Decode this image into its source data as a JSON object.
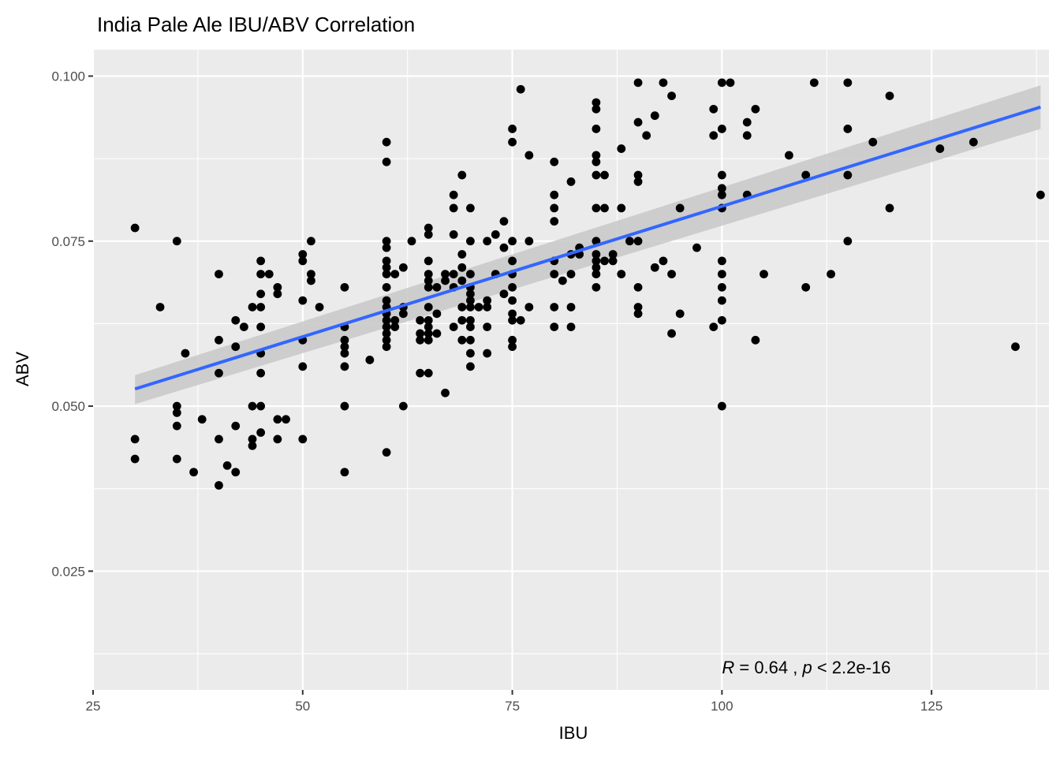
{
  "chart_data": {
    "type": "scatter",
    "title": "India Pale Ale IBU/ABV Correlation",
    "xlabel": "IBU",
    "ylabel": "ABV",
    "xlim": [
      25,
      139
    ],
    "ylim": [
      0.007,
      0.104
    ],
    "x_ticks": [
      25,
      50,
      75,
      100,
      125
    ],
    "x_tick_labels": [
      "25",
      "50",
      "75",
      "100",
      "125"
    ],
    "y_ticks": [
      0.025,
      0.05,
      0.075,
      0.1
    ],
    "y_tick_labels": [
      "0.025",
      "0.050",
      "0.075",
      "0.100"
    ],
    "grid": true,
    "colors": {
      "panel_background": "#ebebeb",
      "grid_major": "#ffffff",
      "points": "#000000",
      "regression_line": "#3366ff",
      "confidence_band": "#c8c8c8"
    },
    "points": [
      [
        30,
        0.077
      ],
      [
        30,
        0.045
      ],
      [
        30,
        0.042
      ],
      [
        33,
        0.065
      ],
      [
        35,
        0.075
      ],
      [
        35,
        0.05
      ],
      [
        35,
        0.049
      ],
      [
        35,
        0.047
      ],
      [
        35,
        0.042
      ],
      [
        36,
        0.058
      ],
      [
        37,
        0.04
      ],
      [
        38,
        0.048
      ],
      [
        40,
        0.07
      ],
      [
        40,
        0.06
      ],
      [
        40,
        0.055
      ],
      [
        40,
        0.045
      ],
      [
        40,
        0.038
      ],
      [
        41,
        0.041
      ],
      [
        42,
        0.063
      ],
      [
        42,
        0.059
      ],
      [
        42,
        0.047
      ],
      [
        42,
        0.04
      ],
      [
        43,
        0.062
      ],
      [
        44,
        0.065
      ],
      [
        44,
        0.05
      ],
      [
        44,
        0.045
      ],
      [
        44,
        0.044
      ],
      [
        45,
        0.072
      ],
      [
        45,
        0.07
      ],
      [
        45,
        0.067
      ],
      [
        45,
        0.065
      ],
      [
        45,
        0.062
      ],
      [
        45,
        0.058
      ],
      [
        45,
        0.055
      ],
      [
        45,
        0.05
      ],
      [
        45,
        0.046
      ],
      [
        46,
        0.07
      ],
      [
        47,
        0.068
      ],
      [
        47,
        0.067
      ],
      [
        47,
        0.048
      ],
      [
        47,
        0.045
      ],
      [
        48,
        0.048
      ],
      [
        50,
        0.073
      ],
      [
        50,
        0.072
      ],
      [
        50,
        0.066
      ],
      [
        50,
        0.06
      ],
      [
        50,
        0.056
      ],
      [
        50,
        0.045
      ],
      [
        51,
        0.075
      ],
      [
        51,
        0.07
      ],
      [
        51,
        0.069
      ],
      [
        52,
        0.065
      ],
      [
        55,
        0.068
      ],
      [
        55,
        0.062
      ],
      [
        55,
        0.06
      ],
      [
        55,
        0.059
      ],
      [
        55,
        0.058
      ],
      [
        55,
        0.056
      ],
      [
        55,
        0.05
      ],
      [
        55,
        0.04
      ],
      [
        58,
        0.057
      ],
      [
        60,
        0.09
      ],
      [
        60,
        0.087
      ],
      [
        60,
        0.075
      ],
      [
        60,
        0.074
      ],
      [
        60,
        0.072
      ],
      [
        60,
        0.071
      ],
      [
        60,
        0.07
      ],
      [
        60,
        0.068
      ],
      [
        60,
        0.066
      ],
      [
        60,
        0.065
      ],
      [
        60,
        0.064
      ],
      [
        60,
        0.063
      ],
      [
        60,
        0.062
      ],
      [
        60,
        0.061
      ],
      [
        60,
        0.06
      ],
      [
        60,
        0.059
      ],
      [
        60,
        0.043
      ],
      [
        61,
        0.07
      ],
      [
        61,
        0.063
      ],
      [
        61,
        0.062
      ],
      [
        62,
        0.071
      ],
      [
        62,
        0.065
      ],
      [
        62,
        0.064
      ],
      [
        62,
        0.05
      ],
      [
        63,
        0.075
      ],
      [
        64,
        0.063
      ],
      [
        64,
        0.061
      ],
      [
        64,
        0.06
      ],
      [
        64,
        0.055
      ],
      [
        65,
        0.077
      ],
      [
        65,
        0.076
      ],
      [
        65,
        0.072
      ],
      [
        65,
        0.07
      ],
      [
        65,
        0.069
      ],
      [
        65,
        0.068
      ],
      [
        65,
        0.065
      ],
      [
        65,
        0.063
      ],
      [
        65,
        0.062
      ],
      [
        65,
        0.061
      ],
      [
        65,
        0.06
      ],
      [
        65,
        0.055
      ],
      [
        66,
        0.068
      ],
      [
        66,
        0.064
      ],
      [
        66,
        0.061
      ],
      [
        67,
        0.07
      ],
      [
        67,
        0.069
      ],
      [
        67,
        0.052
      ],
      [
        68,
        0.082
      ],
      [
        68,
        0.08
      ],
      [
        68,
        0.076
      ],
      [
        68,
        0.07
      ],
      [
        68,
        0.068
      ],
      [
        68,
        0.062
      ],
      [
        69,
        0.085
      ],
      [
        69,
        0.073
      ],
      [
        69,
        0.071
      ],
      [
        69,
        0.069
      ],
      [
        69,
        0.065
      ],
      [
        69,
        0.063
      ],
      [
        69,
        0.06
      ],
      [
        70,
        0.08
      ],
      [
        70,
        0.075
      ],
      [
        70,
        0.07
      ],
      [
        70,
        0.068
      ],
      [
        70,
        0.067
      ],
      [
        70,
        0.066
      ],
      [
        70,
        0.065
      ],
      [
        70,
        0.063
      ],
      [
        70,
        0.062
      ],
      [
        70,
        0.06
      ],
      [
        70,
        0.058
      ],
      [
        70,
        0.056
      ],
      [
        71,
        0.065
      ],
      [
        72,
        0.075
      ],
      [
        72,
        0.066
      ],
      [
        72,
        0.065
      ],
      [
        72,
        0.062
      ],
      [
        72,
        0.058
      ],
      [
        73,
        0.076
      ],
      [
        73,
        0.07
      ],
      [
        74,
        0.078
      ],
      [
        74,
        0.074
      ],
      [
        74,
        0.067
      ],
      [
        75,
        0.092
      ],
      [
        75,
        0.09
      ],
      [
        75,
        0.075
      ],
      [
        75,
        0.072
      ],
      [
        75,
        0.07
      ],
      [
        75,
        0.068
      ],
      [
        75,
        0.066
      ],
      [
        75,
        0.064
      ],
      [
        75,
        0.063
      ],
      [
        75,
        0.06
      ],
      [
        75,
        0.059
      ],
      [
        76,
        0.098
      ],
      [
        76,
        0.063
      ],
      [
        77,
        0.088
      ],
      [
        77,
        0.075
      ],
      [
        77,
        0.065
      ],
      [
        80,
        0.087
      ],
      [
        80,
        0.082
      ],
      [
        80,
        0.08
      ],
      [
        80,
        0.078
      ],
      [
        80,
        0.072
      ],
      [
        80,
        0.07
      ],
      [
        80,
        0.065
      ],
      [
        80,
        0.062
      ],
      [
        81,
        0.069
      ],
      [
        82,
        0.084
      ],
      [
        82,
        0.073
      ],
      [
        82,
        0.07
      ],
      [
        82,
        0.065
      ],
      [
        82,
        0.062
      ],
      [
        83,
        0.074
      ],
      [
        83,
        0.073
      ],
      [
        85,
        0.096
      ],
      [
        85,
        0.095
      ],
      [
        85,
        0.092
      ],
      [
        85,
        0.088
      ],
      [
        85,
        0.087
      ],
      [
        85,
        0.085
      ],
      [
        85,
        0.08
      ],
      [
        85,
        0.075
      ],
      [
        85,
        0.073
      ],
      [
        85,
        0.072
      ],
      [
        85,
        0.071
      ],
      [
        85,
        0.07
      ],
      [
        85,
        0.068
      ],
      [
        86,
        0.085
      ],
      [
        86,
        0.08
      ],
      [
        86,
        0.072
      ],
      [
        87,
        0.073
      ],
      [
        87,
        0.072
      ],
      [
        88,
        0.089
      ],
      [
        88,
        0.08
      ],
      [
        88,
        0.07
      ],
      [
        89,
        0.075
      ],
      [
        90,
        0.099
      ],
      [
        90,
        0.093
      ],
      [
        90,
        0.085
      ],
      [
        90,
        0.084
      ],
      [
        90,
        0.075
      ],
      [
        90,
        0.068
      ],
      [
        90,
        0.065
      ],
      [
        90,
        0.064
      ],
      [
        91,
        0.091
      ],
      [
        92,
        0.094
      ],
      [
        92,
        0.071
      ],
      [
        93,
        0.099
      ],
      [
        93,
        0.072
      ],
      [
        94,
        0.097
      ],
      [
        94,
        0.07
      ],
      [
        94,
        0.061
      ],
      [
        95,
        0.08
      ],
      [
        95,
        0.064
      ],
      [
        97,
        0.074
      ],
      [
        99,
        0.095
      ],
      [
        99,
        0.091
      ],
      [
        99,
        0.062
      ],
      [
        100,
        0.099
      ],
      [
        100,
        0.092
      ],
      [
        100,
        0.085
      ],
      [
        100,
        0.083
      ],
      [
        100,
        0.082
      ],
      [
        100,
        0.08
      ],
      [
        100,
        0.072
      ],
      [
        100,
        0.07
      ],
      [
        100,
        0.068
      ],
      [
        100,
        0.066
      ],
      [
        100,
        0.063
      ],
      [
        100,
        0.05
      ],
      [
        101,
        0.099
      ],
      [
        103,
        0.093
      ],
      [
        103,
        0.091
      ],
      [
        103,
        0.082
      ],
      [
        104,
        0.095
      ],
      [
        104,
        0.06
      ],
      [
        105,
        0.07
      ],
      [
        108,
        0.088
      ],
      [
        110,
        0.085
      ],
      [
        110,
        0.068
      ],
      [
        111,
        0.099
      ],
      [
        113,
        0.07
      ],
      [
        115,
        0.099
      ],
      [
        115,
        0.092
      ],
      [
        115,
        0.085
      ],
      [
        115,
        0.075
      ],
      [
        118,
        0.09
      ],
      [
        120,
        0.097
      ],
      [
        120,
        0.08
      ],
      [
        126,
        0.089
      ],
      [
        130,
        0.09
      ],
      [
        135,
        0.059
      ],
      [
        138,
        0.082
      ]
    ],
    "regression": {
      "x": [
        30,
        138
      ],
      "y": [
        0.0526,
        0.0953
      ],
      "ci_lower": [
        0.0503,
        0.092
      ],
      "ci_upper": [
        0.0547,
        0.0986
      ]
    },
    "annotation": {
      "r_symbol": "R",
      "r_text": " = 0.64 , ",
      "p_symbol": "p",
      "p_text": " < 2.2e-16",
      "x": 100,
      "y": 0.0095
    }
  }
}
